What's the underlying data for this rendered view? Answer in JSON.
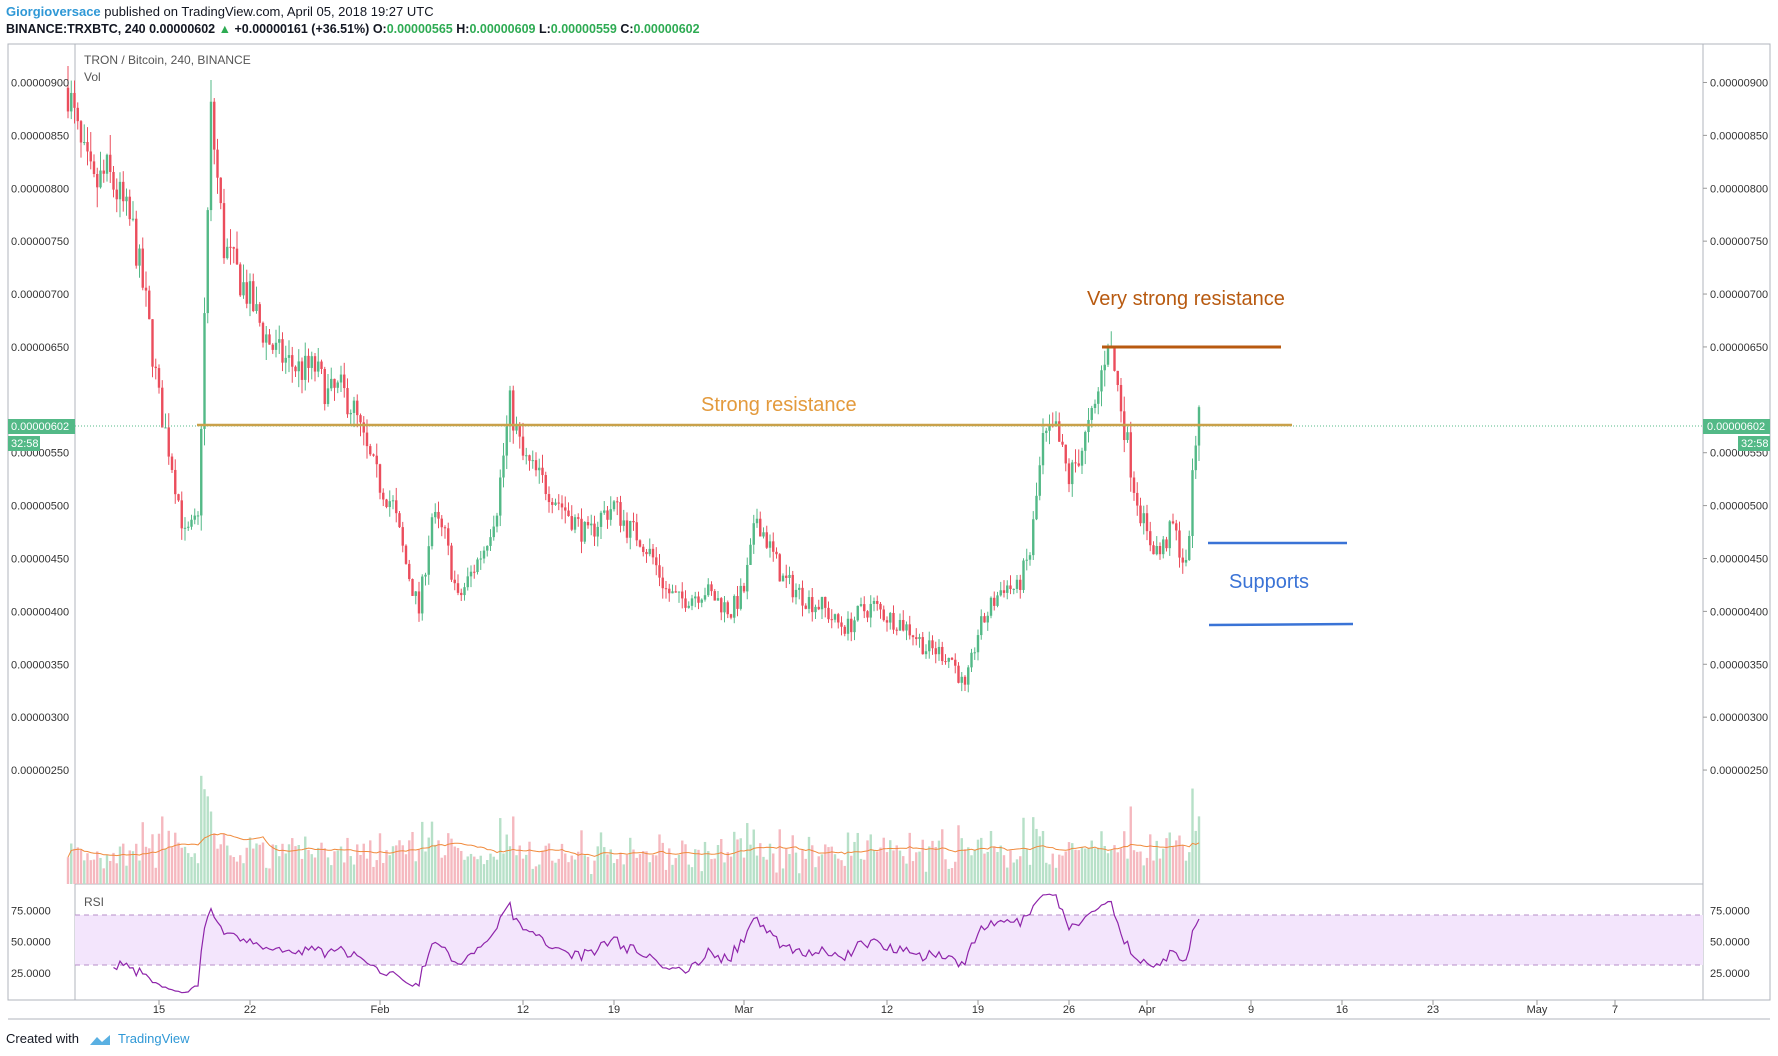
{
  "header": {
    "author": "Giorgioversace",
    "published": "published on TradingView.com, April 05, 2018 19:27 UTC",
    "symbol": "BINANCE:TRXBTC, 240",
    "last": "0.00000602",
    "change": "+0.00000161 (+36.51%)",
    "o_label": "O:",
    "o": "0.00000565",
    "h_label": "H:",
    "h": "0.00000609",
    "l_label": "L:",
    "l": "0.00000559",
    "c_label": "C:",
    "c": "0.00000602"
  },
  "legend": {
    "title": "TRON / Bitcoin, 240, BINANCE",
    "vol": "Vol",
    "rsi": "RSI"
  },
  "price_badge": {
    "value": "0.00000602",
    "timer": "32:58"
  },
  "annotations": {
    "strong": "Strong resistance",
    "very_strong": "Very strong resistance",
    "supports": "Supports"
  },
  "footer": {
    "created": "Created with",
    "brand": "TradingView"
  },
  "colors": {
    "up": "#53b987",
    "down": "#eb4d5c",
    "strong": "#c9a14a",
    "very_strong": "#b85a10",
    "support": "#3a73d6",
    "rsi": "#8e24aa",
    "vol_ma": "#f08a3c"
  },
  "chart_data": {
    "type": "candlestick",
    "price_ticks": [
      "0.00000900",
      "0.00000850",
      "0.00000800",
      "0.00000750",
      "0.00000700",
      "0.00000650",
      "0.00000550",
      "0.00000500",
      "0.00000450",
      "0.00000400",
      "0.00000350",
      "0.00000300",
      "0.00000250"
    ],
    "price_tick_values": [
      900,
      850,
      800,
      750,
      700,
      650,
      550,
      500,
      450,
      400,
      350,
      300,
      250
    ],
    "ylim_satoshi": [
      214,
      936
    ],
    "rsi_ticks": [
      "75.0000",
      "50.0000",
      "25.0000"
    ],
    "rsi_tick_values": [
      75,
      50,
      25
    ],
    "rsi_band": [
      30,
      70
    ],
    "x_ticks": [
      {
        "label": "15",
        "date": "2018-01-15"
      },
      {
        "label": "22",
        "date": "2018-01-22"
      },
      {
        "label": "Feb",
        "date": "2018-02-01"
      },
      {
        "label": "12",
        "date": "2018-02-12"
      },
      {
        "label": "19",
        "date": "2018-02-19"
      },
      {
        "label": "Mar",
        "date": "2018-03-01"
      },
      {
        "label": "12",
        "date": "2018-03-12"
      },
      {
        "label": "19",
        "date": "2018-03-19"
      },
      {
        "label": "26",
        "date": "2018-03-26"
      },
      {
        "label": "Apr",
        "date": "2018-04-01"
      },
      {
        "label": "9",
        "date": "2018-04-09"
      },
      {
        "label": "16",
        "date": "2018-04-16"
      },
      {
        "label": "23",
        "date": "2018-04-23"
      },
      {
        "label": "May",
        "date": "2018-05-01"
      },
      {
        "label": "7",
        "date": "2018-05-07"
      }
    ],
    "price_path": [
      [
        "2018-01-08",
        895
      ],
      [
        "2018-01-09",
        835
      ],
      [
        "2018-01-10",
        800
      ],
      [
        "2018-01-11",
        815
      ],
      [
        "2018-01-12",
        790
      ],
      [
        "2018-01-13",
        760
      ],
      [
        "2018-01-14",
        690
      ],
      [
        "2018-01-15",
        600
      ],
      [
        "2018-01-16",
        540
      ],
      [
        "2018-01-17",
        470
      ],
      [
        "2018-01-18",
        485
      ],
      [
        "2018-01-19",
        870
      ],
      [
        "2018-01-20",
        745
      ],
      [
        "2018-01-21",
        720
      ],
      [
        "2018-01-22",
        695
      ],
      [
        "2018-01-23",
        665
      ],
      [
        "2018-01-24",
        645
      ],
      [
        "2018-01-25",
        635
      ],
      [
        "2018-01-26",
        628
      ],
      [
        "2018-01-27",
        630
      ],
      [
        "2018-01-28",
        605
      ],
      [
        "2018-01-29",
        610
      ],
      [
        "2018-01-30",
        590
      ],
      [
        "2018-01-31",
        550
      ],
      [
        "2018-02-01",
        520
      ],
      [
        "2018-02-02",
        500
      ],
      [
        "2018-02-03",
        445
      ],
      [
        "2018-02-04",
        400
      ],
      [
        "2018-02-05",
        490
      ],
      [
        "2018-02-06",
        470
      ],
      [
        "2018-02-07",
        410
      ],
      [
        "2018-02-08",
        435
      ],
      [
        "2018-02-09",
        460
      ],
      [
        "2018-02-10",
        500
      ],
      [
        "2018-02-11",
        595
      ],
      [
        "2018-02-12",
        545
      ],
      [
        "2018-02-13",
        530
      ],
      [
        "2018-02-14",
        515
      ],
      [
        "2018-02-15",
        500
      ],
      [
        "2018-02-16",
        485
      ],
      [
        "2018-02-17",
        470
      ],
      [
        "2018-02-18",
        490
      ],
      [
        "2018-02-19",
        500
      ],
      [
        "2018-02-20",
        480
      ],
      [
        "2018-02-21",
        470
      ],
      [
        "2018-02-22",
        450
      ],
      [
        "2018-02-23",
        420
      ],
      [
        "2018-02-24",
        410
      ],
      [
        "2018-02-25",
        415
      ],
      [
        "2018-02-26",
        420
      ],
      [
        "2018-02-27",
        410
      ],
      [
        "2018-02-28",
        400
      ],
      [
        "2018-03-01",
        420
      ],
      [
        "2018-03-02",
        490
      ],
      [
        "2018-03-03",
        460
      ],
      [
        "2018-03-04",
        430
      ],
      [
        "2018-03-05",
        420
      ],
      [
        "2018-03-06",
        410
      ],
      [
        "2018-03-07",
        405
      ],
      [
        "2018-03-08",
        390
      ],
      [
        "2018-03-09",
        385
      ],
      [
        "2018-03-10",
        400
      ],
      [
        "2018-03-11",
        405
      ],
      [
        "2018-03-12",
        395
      ],
      [
        "2018-03-13",
        390
      ],
      [
        "2018-03-14",
        380
      ],
      [
        "2018-03-15",
        365
      ],
      [
        "2018-03-16",
        362
      ],
      [
        "2018-03-17",
        355
      ],
      [
        "2018-03-18",
        325
      ],
      [
        "2018-03-19",
        380
      ],
      [
        "2018-03-20",
        405
      ],
      [
        "2018-03-21",
        425
      ],
      [
        "2018-03-22",
        420
      ],
      [
        "2018-03-23",
        455
      ],
      [
        "2018-03-24",
        560
      ],
      [
        "2018-03-25",
        570
      ],
      [
        "2018-03-26",
        525
      ],
      [
        "2018-03-27",
        555
      ],
      [
        "2018-03-28",
        590
      ],
      [
        "2018-03-29",
        660
      ],
      [
        "2018-03-30",
        595
      ],
      [
        "2018-03-31",
        520
      ],
      [
        "2018-04-01",
        470
      ],
      [
        "2018-04-02",
        455
      ],
      [
        "2018-04-03",
        480
      ],
      [
        "2018-04-04",
        440
      ],
      [
        "2018-04-05",
        602
      ]
    ]
  }
}
